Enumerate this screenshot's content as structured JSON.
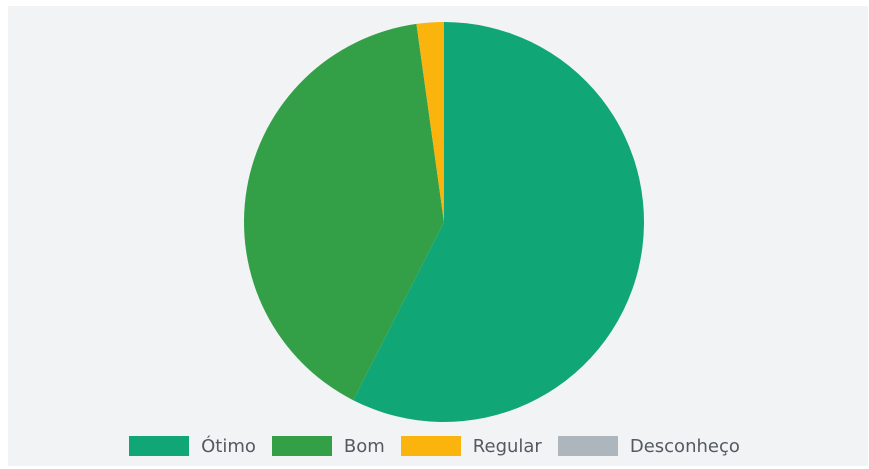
{
  "chart_data": {
    "type": "pie",
    "title": "",
    "series": [
      {
        "name": "Ótimo",
        "value": 57.5,
        "color": "#10a676"
      },
      {
        "name": "Bom",
        "value": 40.3,
        "color": "#33a047"
      },
      {
        "name": "Regular",
        "value": 2.2,
        "color": "#fbb40e"
      },
      {
        "name": "Desconheço",
        "value": 0,
        "color": "#adb5bd"
      }
    ],
    "legend_position": "bottom",
    "background": "#f1f3f5"
  }
}
